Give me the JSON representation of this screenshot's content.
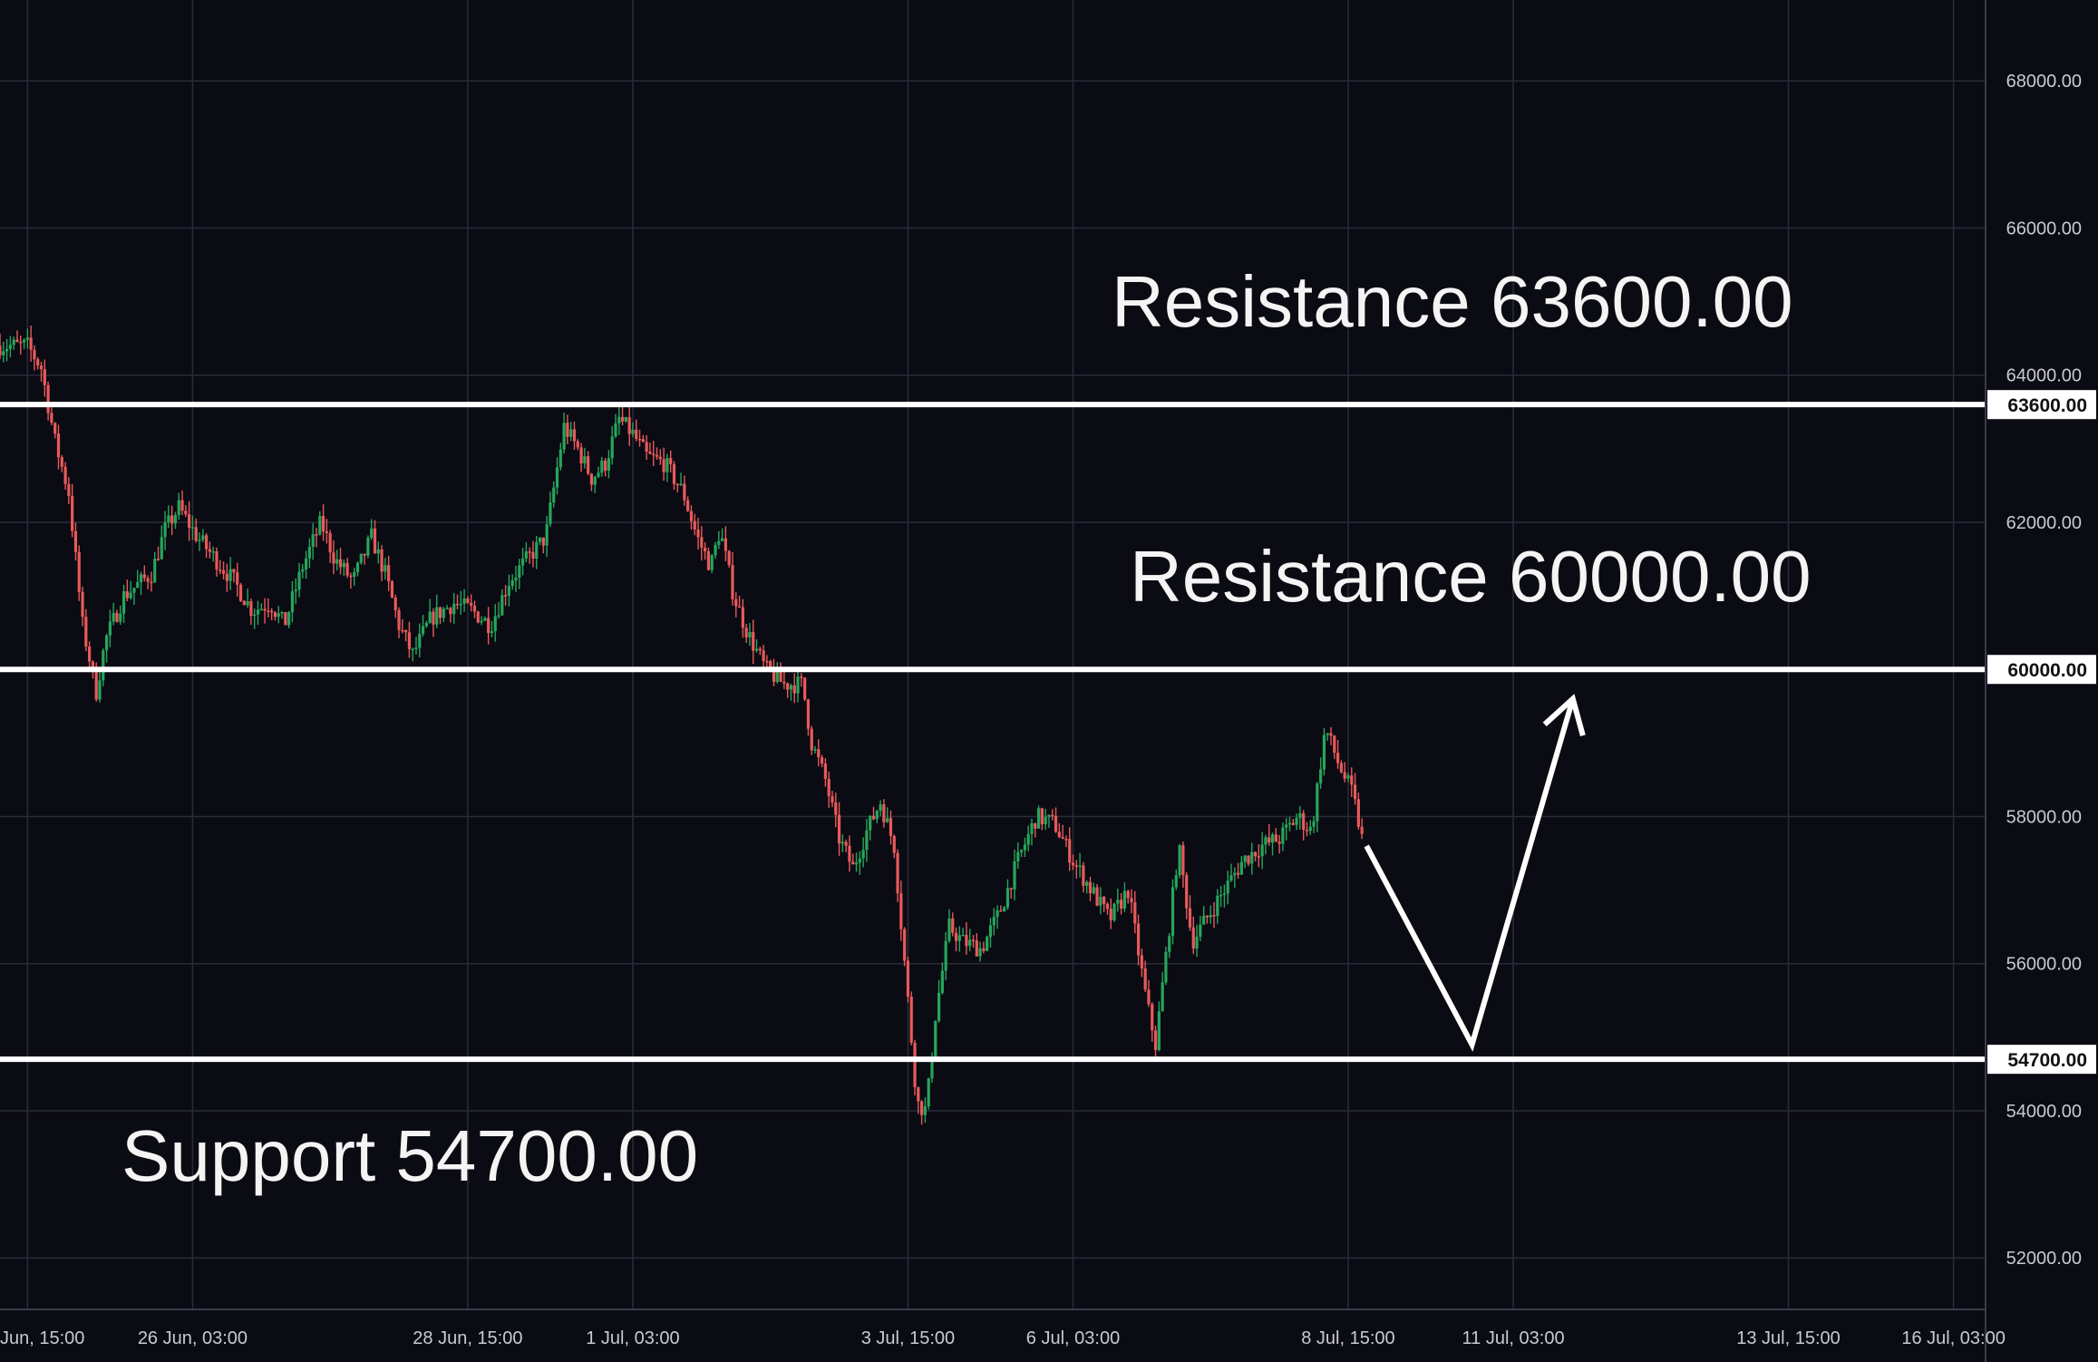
{
  "colors": {
    "background": "#0b0b14",
    "grid": "#2a2c38",
    "up": "#26a65b",
    "down": "#e85a5a",
    "annotation": "#ffffff",
    "axis_text": "#c9c9d0"
  },
  "chart_data": {
    "type": "candlestick",
    "title": "",
    "xlabel": "",
    "ylabel": "",
    "y_range": [
      51300,
      69100
    ],
    "y_ticks": [
      "52000.00",
      "54000.00",
      "56000.00",
      "58000.00",
      "60000.00",
      "62000.00",
      "64000.00",
      "66000.00",
      "68000.00"
    ],
    "y_tick_values": [
      52000,
      54000,
      56000,
      58000,
      60000,
      62000,
      64000,
      66000,
      68000
    ],
    "x_ticks": [
      "Jun, 15:00",
      "26 Jun, 03:00",
      "28 Jun, 15:00",
      "1 Jul, 03:00",
      "3 Jul, 15:00",
      "6 Jul, 03:00",
      "8 Jul, 15:00",
      "11 Jul, 03:00",
      "13 Jul, 15:00",
      "16 Jul, 03:00"
    ],
    "x_tick_hours": [
      15,
      51,
      111,
      147,
      207,
      243,
      303,
      339,
      399,
      435
    ],
    "x_tick_hours_note_removed": true,
    "x_range_hours": [
      9,
      442
    ],
    "grid": true,
    "price_path": [
      [
        9,
        64400
      ],
      [
        15,
        64400
      ],
      [
        18,
        64100
      ],
      [
        21,
        63100
      ],
      [
        24,
        62400
      ],
      [
        27,
        60600
      ],
      [
        30,
        59700
      ],
      [
        32,
        60400
      ],
      [
        36,
        61000
      ],
      [
        42,
        61300
      ],
      [
        45,
        61900
      ],
      [
        48,
        62200
      ],
      [
        52,
        61800
      ],
      [
        56,
        61500
      ],
      [
        60,
        61200
      ],
      [
        64,
        60800
      ],
      [
        68,
        60900
      ],
      [
        71,
        60600
      ],
      [
        75,
        61400
      ],
      [
        79,
        62000
      ],
      [
        82,
        61500
      ],
      [
        86,
        61200
      ],
      [
        90,
        61800
      ],
      [
        93,
        61300
      ],
      [
        96,
        60600
      ],
      [
        99,
        60200
      ],
      [
        103,
        60700
      ],
      [
        108,
        60900
      ],
      [
        112,
        60800
      ],
      [
        116,
        60600
      ],
      [
        120,
        61200
      ],
      [
        124,
        61500
      ],
      [
        128,
        61800
      ],
      [
        132,
        63300
      ],
      [
        135,
        63000
      ],
      [
        138,
        62600
      ],
      [
        141,
        62800
      ],
      [
        144,
        63400
      ],
      [
        147,
        63200
      ],
      [
        150,
        62900
      ],
      [
        154,
        62800
      ],
      [
        158,
        62400
      ],
      [
        161,
        61800
      ],
      [
        164,
        61400
      ],
      [
        166,
        61900
      ],
      [
        169,
        61000
      ],
      [
        172,
        60500
      ],
      [
        176,
        60000
      ],
      [
        180,
        59800
      ],
      [
        184,
        59800
      ],
      [
        186,
        59000
      ],
      [
        189,
        58500
      ],
      [
        192,
        57700
      ],
      [
        195,
        57300
      ],
      [
        198,
        57800
      ],
      [
        201,
        58200
      ],
      [
        204,
        57600
      ],
      [
        207,
        55500
      ],
      [
        209,
        54100
      ],
      [
        211,
        54000
      ],
      [
        213,
        55300
      ],
      [
        216,
        56500
      ],
      [
        219,
        56300
      ],
      [
        223,
        56200
      ],
      [
        227,
        56700
      ],
      [
        231,
        57400
      ],
      [
        235,
        58000
      ],
      [
        239,
        57900
      ],
      [
        243,
        57400
      ],
      [
        247,
        57000
      ],
      [
        251,
        56600
      ],
      [
        255,
        57000
      ],
      [
        259,
        55500
      ],
      [
        261,
        54900
      ],
      [
        264,
        56500
      ],
      [
        266,
        57600
      ],
      [
        269,
        56300
      ],
      [
        272,
        56600
      ],
      [
        276,
        57000
      ],
      [
        280,
        57400
      ],
      [
        284,
        57600
      ],
      [
        288,
        57700
      ],
      [
        292,
        58000
      ],
      [
        295,
        57800
      ],
      [
        298,
        59200
      ],
      [
        301,
        58700
      ],
      [
        304,
        58300
      ],
      [
        306,
        57700
      ]
    ],
    "levels": [
      {
        "value": 63600,
        "label": "63600.00"
      },
      {
        "value": 60000,
        "label": "60000.00"
      },
      {
        "value": 54700,
        "label": "54700.00"
      }
    ],
    "annotations": [
      {
        "text": "Resistance 63600.00"
      },
      {
        "text": "Resistance 60000.00"
      },
      {
        "text": "Support 54700.00"
      }
    ],
    "projection": [
      [
        307,
        57600
      ],
      [
        330,
        54900
      ],
      [
        352,
        59600
      ]
    ]
  }
}
